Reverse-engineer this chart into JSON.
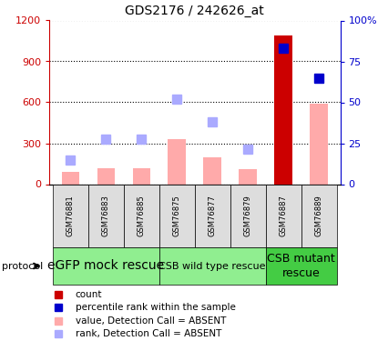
{
  "title": "GDS2176 / 242626_at",
  "samples": [
    "GSM76881",
    "GSM76883",
    "GSM76885",
    "GSM76875",
    "GSM76877",
    "GSM76879",
    "GSM76887",
    "GSM76889"
  ],
  "count_values": [
    null,
    null,
    null,
    null,
    null,
    null,
    1090,
    null
  ],
  "count_color": "#cc0000",
  "pct_rank_values": [
    null,
    null,
    null,
    null,
    null,
    null,
    83,
    65
  ],
  "pct_rank_color": "#0000cc",
  "absent_value": [
    90,
    115,
    120,
    330,
    200,
    110,
    null,
    590
  ],
  "absent_value_color": "#ffaaaa",
  "absent_rank": [
    175,
    330,
    330,
    620,
    460,
    260,
    null,
    null
  ],
  "absent_rank_color": "#aaaaff",
  "ylim_left": [
    0,
    1200
  ],
  "ylim_right": [
    0,
    100
  ],
  "yticks_left": [
    0,
    300,
    600,
    900,
    1200
  ],
  "yticks_right": [
    0,
    25,
    50,
    75,
    100
  ],
  "ytick_labels_left": [
    "0",
    "300",
    "600",
    "900",
    "1200"
  ],
  "ytick_labels_right": [
    "0",
    "25",
    "50",
    "75",
    "100%"
  ],
  "sample_box_color": "#dddddd",
  "left_axis_color": "#cc0000",
  "right_axis_color": "#0000cc",
  "group_configs": [
    {
      "start": 0,
      "end": 3,
      "label": "eGFP mock rescue",
      "color": "#90ee90",
      "fontsize": 10
    },
    {
      "start": 3,
      "end": 6,
      "label": "CSB wild type rescue",
      "color": "#90ee90",
      "fontsize": 8
    },
    {
      "start": 6,
      "end": 8,
      "label": "CSB mutant\nrescue",
      "color": "#44cc44",
      "fontsize": 9
    }
  ],
  "legend_items": [
    {
      "color": "#cc0000",
      "label": "count"
    },
    {
      "color": "#0000cc",
      "label": "percentile rank within the sample"
    },
    {
      "color": "#ffaaaa",
      "label": "value, Detection Call = ABSENT"
    },
    {
      "color": "#aaaaff",
      "label": "rank, Detection Call = ABSENT"
    }
  ]
}
